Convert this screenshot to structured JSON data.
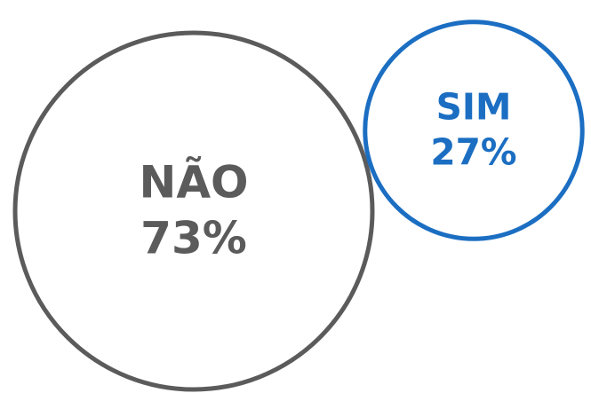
{
  "chart_data": {
    "type": "bubble",
    "categories": [
      "NÃO",
      "SIM"
    ],
    "values": [
      73,
      27
    ],
    "value_labels": [
      "73%",
      "27%"
    ],
    "colors": [
      "#5b5b5b",
      "#1b6ec2"
    ]
  }
}
